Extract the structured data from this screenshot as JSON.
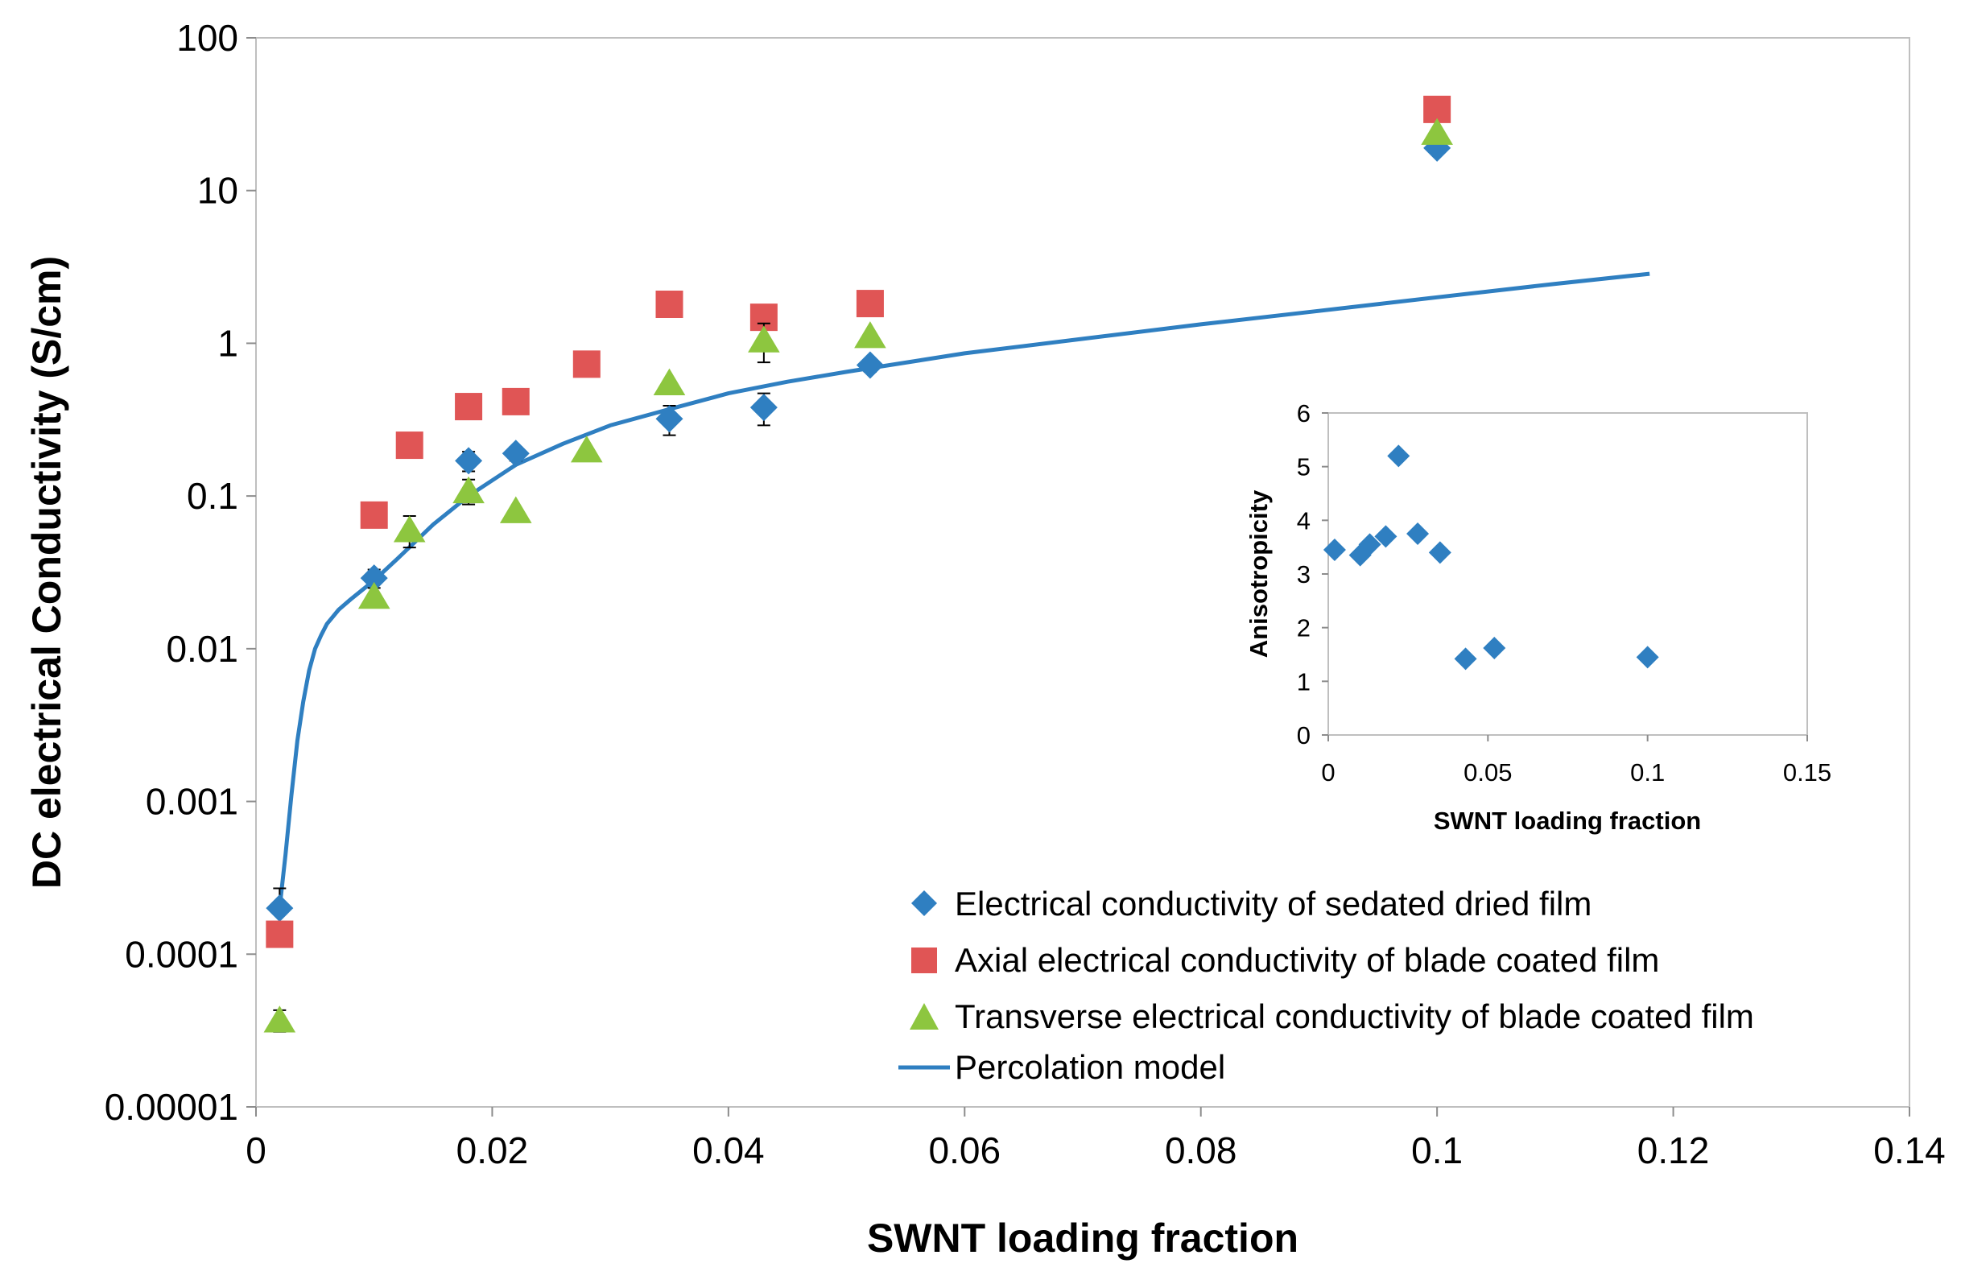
{
  "chart_data": [
    {
      "type": "scatter",
      "title": "",
      "xlabel": "SWNT loading fraction",
      "ylabel": "DC electrical Conductivity (S/cm)",
      "xlim": [
        0,
        0.14
      ],
      "ylim": [
        1e-05,
        100
      ],
      "yscale": "log",
      "x_ticks": [
        0,
        0.02,
        0.04,
        0.06,
        0.08,
        0.1,
        0.12,
        0.14
      ],
      "x_tick_labels": [
        "0",
        "0.02",
        "0.04",
        "0.06",
        "0.08",
        "0.1",
        "0.12",
        "0.14"
      ],
      "y_ticks": [
        1e-05,
        0.0001,
        0.001,
        0.01,
        0.1,
        1,
        10,
        100
      ],
      "y_tick_labels": [
        "0.00001",
        "0.0001",
        "0.001",
        "0.01",
        "0.1",
        "1",
        "10",
        "100"
      ],
      "grid": false,
      "legend_position": "bottom-right",
      "series": [
        {
          "name": "Electrical conductivity of sedated dried film",
          "marker": "diamond",
          "color": "#2f7fc1",
          "x": [
            0.002,
            0.01,
            0.018,
            0.022,
            0.035,
            0.043,
            0.052,
            0.1
          ],
          "y": [
            0.0002,
            0.029,
            0.17,
            0.19,
            0.32,
            0.38,
            0.72,
            19
          ],
          "error": [
            7e-05,
            0.004,
            0.025,
            0.02,
            0.07,
            0.09,
            0.07,
            0
          ]
        },
        {
          "name": "Axial electrical conductivity of blade coated film",
          "marker": "square",
          "color": "#e05555",
          "x": [
            0.002,
            0.01,
            0.013,
            0.018,
            0.022,
            0.028,
            0.035,
            0.043,
            0.052,
            0.1
          ],
          "y": [
            0.000135,
            0.075,
            0.215,
            0.385,
            0.415,
            0.73,
            1.8,
            1.48,
            1.82,
            34
          ],
          "error": [
            0,
            0,
            0.03,
            0.06,
            0,
            0,
            0,
            0,
            0,
            0
          ]
        },
        {
          "name": "Transverse electrical conductivity of blade coated film",
          "marker": "triangle",
          "color": "#8dc63f",
          "x": [
            0.002,
            0.01,
            0.013,
            0.018,
            0.022,
            0.028,
            0.035,
            0.043,
            0.052,
            0.1
          ],
          "y": [
            3.7e-05,
            0.022,
            0.06,
            0.108,
            0.08,
            0.2,
            0.55,
            1.05,
            1.12,
            24
          ],
          "error": [
            6e-06,
            0,
            0.014,
            0.02,
            0,
            0,
            0,
            0.3,
            0,
            0
          ]
        },
        {
          "name": "Percolation model",
          "type": "line",
          "color": "#2f7fc1",
          "x": [
            0.002,
            0.0025,
            0.003,
            0.0035,
            0.004,
            0.0045,
            0.005,
            0.0055,
            0.006,
            0.007,
            0.008,
            0.01,
            0.012,
            0.015,
            0.018,
            0.022,
            0.026,
            0.03,
            0.035,
            0.04,
            0.045,
            0.05,
            0.06,
            0.07,
            0.08,
            0.09,
            0.1,
            0.11,
            0.118
          ],
          "y": [
            0.0002,
            0.00045,
            0.0011,
            0.0025,
            0.0045,
            0.0072,
            0.01,
            0.0122,
            0.0145,
            0.018,
            0.021,
            0.028,
            0.039,
            0.065,
            0.1,
            0.16,
            0.22,
            0.29,
            0.37,
            0.47,
            0.56,
            0.65,
            0.86,
            1.07,
            1.33,
            1.63,
            2.0,
            2.45,
            2.85
          ]
        }
      ]
    },
    {
      "type": "scatter",
      "title": "",
      "xlabel": "SWNT loading fraction",
      "ylabel": "Anisotropicity",
      "xlim": [
        0,
        0.15
      ],
      "ylim": [
        0,
        6
      ],
      "x_ticks": [
        0,
        0.05,
        0.1,
        0.15
      ],
      "x_tick_labels": [
        "0",
        "0.05",
        "0.1",
        "0.15"
      ],
      "y_ticks": [
        0,
        1,
        2,
        3,
        4,
        5,
        6
      ],
      "y_tick_labels": [
        "0",
        "1",
        "2",
        "3",
        "4",
        "5",
        "6"
      ],
      "grid": false,
      "legend_position": "none",
      "series": [
        {
          "name": "Anisotropicity",
          "marker": "diamond",
          "color": "#2f7fc1",
          "x": [
            0.002,
            0.01,
            0.013,
            0.018,
            0.022,
            0.028,
            0.035,
            0.043,
            0.052,
            0.1
          ],
          "y": [
            3.45,
            3.35,
            3.55,
            3.7,
            5.2,
            3.75,
            3.4,
            1.42,
            1.62,
            1.45
          ]
        }
      ]
    }
  ]
}
